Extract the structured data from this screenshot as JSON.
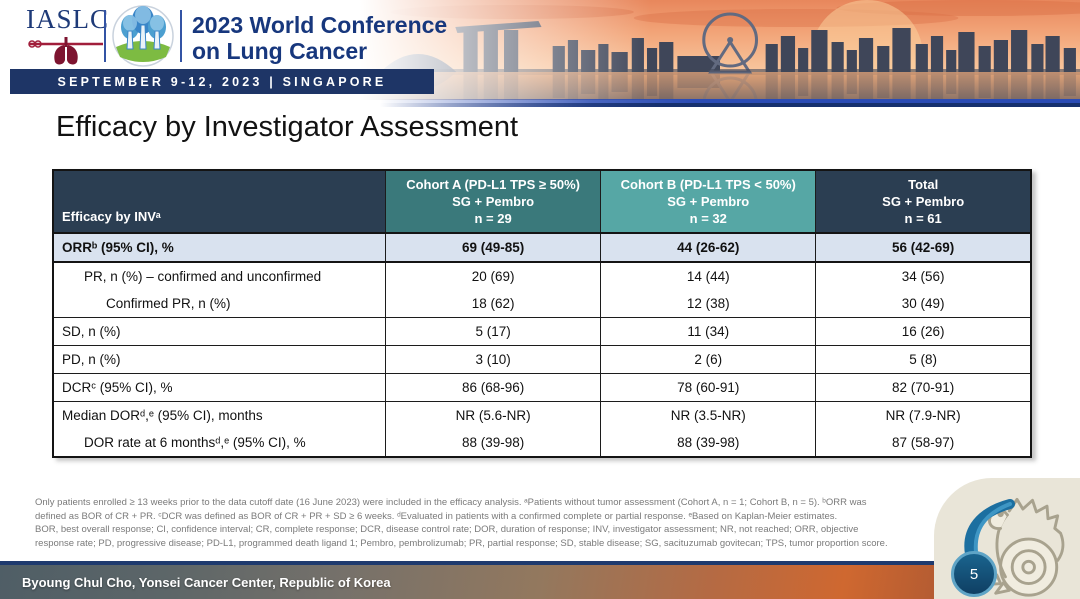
{
  "banner": {
    "iaslc_logo_text": "IASLC",
    "conference_title_line1": "2023 World Conference",
    "conference_title_line2": "on Lung Cancer",
    "date_banner": "SEPTEMBER 9-12, 2023  |  SINGAPORE"
  },
  "slide": {
    "title": "Efficacy by Investigator Assessment",
    "page_number": "5",
    "presenter": "Byoung Chul Cho, Yonsei Cancer Center, Republic of Korea"
  },
  "table": {
    "header": {
      "label": "Efficacy by INVᵃ",
      "columns": [
        {
          "line1": "Cohort A (PD-L1 TPS ≥ 50%)",
          "line2": "SG + Pembro",
          "line3": "n = 29"
        },
        {
          "line1": "Cohort B (PD-L1 TPS < 50%)",
          "line2": "SG + Pembro",
          "line3": "n = 32"
        },
        {
          "line1": "Total",
          "line2": "SG + Pembro",
          "line3": "n = 61"
        }
      ]
    },
    "rows": [
      {
        "label": "ORRᵇ (95% CI), %",
        "values": [
          "69 (49-85)",
          "44 (26-62)",
          "56 (42-69)"
        ],
        "highlight": true
      },
      {
        "label": "PR, n (%) – confirmed and unconfirmed",
        "values": [
          "20 (69)",
          "14 (44)",
          "34 (56)"
        ],
        "indent": 1
      },
      {
        "label": "Confirmed PR, n (%)",
        "values": [
          "18 (62)",
          "12 (38)",
          "30 (49)"
        ],
        "indent": 2
      },
      {
        "label": "SD, n (%)",
        "values": [
          "5 (17)",
          "11 (34)",
          "16 (26)"
        ],
        "sep": true
      },
      {
        "label": "PD, n (%)",
        "values": [
          "3 (10)",
          "2 (6)",
          "5 (8)"
        ],
        "sep": true
      },
      {
        "label": "DCRᶜ (95% CI), %",
        "values": [
          "86 (68-96)",
          "78 (60-91)",
          "82 (70-91)"
        ],
        "sep": true
      },
      {
        "label": "Median DORᵈ,ᵉ (95% CI), months",
        "values": [
          "NR (5.6-NR)",
          "NR (3.5-NR)",
          "NR (7.9-NR)"
        ],
        "sep": true
      },
      {
        "label": "DOR rate at 6 monthsᵈ,ᵉ (95% CI), %",
        "values": [
          "88 (39-98)",
          "88 (39-98)",
          "87 (58-97)"
        ],
        "indent": 1
      }
    ]
  },
  "footnote": {
    "lines": [
      "Only patients enrolled ≥ 13 weeks prior to the data cutoff date (16 June 2023) were included in the efficacy analysis. ᵃPatients without tumor assessment (Cohort A, n = 1; Cohort B, n = 5). ᵇORR was",
      "defined as BOR of CR + PR. ᶜDCR was defined as BOR of CR + PR + SD ≥ 6 weeks. ᵈEvaluated in patients with a confirmed complete or partial response. ᵉBased on Kaplan-Meier estimates.",
      "BOR, best overall response; CI, confidence interval; CR, complete response; DCR, disease control rate; DOR, duration of response; INV, investigator assessment; NR, not reached; ORR, objective",
      "response rate; PD, progressive disease; PD-L1, programmed death ligand 1; Pembro, pembrolizumab; PR, partial response; SD, stable disease; SG, sacituzumab govitecan; TPS, tumor proportion score."
    ]
  },
  "colors": {
    "table_header_navy": "#2b3e52",
    "cohort_a_teal": "#3a797b",
    "cohort_b_teal": "#56a7a5",
    "highlight_row_blue": "#d9e2ef",
    "banner_navy": "#1e3566",
    "accent_blue": "#2a4bb5",
    "badge_blue": "#0f3f63",
    "badge_ring_blue": "#5fa4c6",
    "merlion_card_beige": "#e9e5d8",
    "footnote_grey": "#7a7a7a"
  }
}
